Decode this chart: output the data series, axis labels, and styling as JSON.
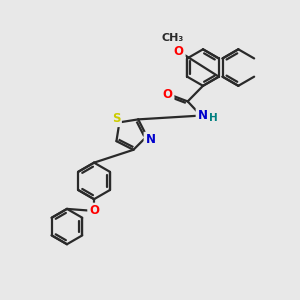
{
  "background_color": "#e8e8e8",
  "bond_color": "#2a2a2a",
  "bond_width": 1.6,
  "atom_colors": {
    "O": "#ff0000",
    "N": "#0000cc",
    "S": "#cccc00",
    "H": "#008080",
    "C": "#2a2a2a"
  },
  "font_size": 8.5,
  "fig_width": 3.0,
  "fig_height": 3.0,
  "xlim": [
    0,
    10
  ],
  "ylim": [
    0,
    10
  ]
}
